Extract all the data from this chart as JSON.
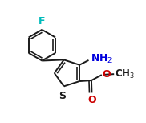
{
  "bg_color": "#ffffff",
  "bond_color": "#1a1a1a",
  "bond_lw": 1.4,
  "F_color": "#00bbbb",
  "N_color": "#0000dd",
  "O_color": "#cc0000",
  "S_color": "#1a1a1a",
  "font_size": 8.5,
  "figsize": [
    1.82,
    1.53
  ],
  "dpi": 100,
  "xlim": [
    0.0,
    1.82
  ],
  "ylim": [
    0.0,
    1.53
  ]
}
